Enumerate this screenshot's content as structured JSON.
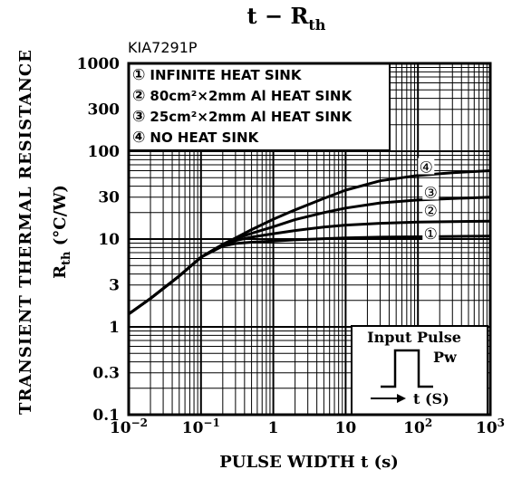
{
  "chart_data": {
    "type": "line",
    "title": {
      "main": "t − R",
      "sub": "th"
    },
    "model": "KIA7291P",
    "xlabel": "PULSE WIDTH  t (s)",
    "ylabel": {
      "outer": "TRANSIENT THERMAL RESISTANCE",
      "inner_main": "R",
      "inner_sub": "th",
      "inner_unit": " (°C/W)"
    },
    "x_scale": "log",
    "y_scale": "log",
    "xlim": [
      0.01,
      1000
    ],
    "ylim": [
      0.1,
      1000
    ],
    "grid": true,
    "x_ticks": [
      {
        "value": 0.01,
        "base": "10",
        "exp": "−2"
      },
      {
        "value": 0.1,
        "base": "10",
        "exp": "−1"
      },
      {
        "value": 1,
        "base": "1",
        "exp": ""
      },
      {
        "value": 10,
        "base": "10",
        "exp": ""
      },
      {
        "value": 100,
        "base": "10",
        "exp": "2"
      },
      {
        "value": 1000,
        "base": "10",
        "exp": "3"
      }
    ],
    "y_ticks": [
      {
        "value": 0.1,
        "label": "0.1"
      },
      {
        "value": 0.3,
        "label": "0.3"
      },
      {
        "value": 1,
        "label": "1"
      },
      {
        "value": 3,
        "label": "3"
      },
      {
        "value": 10,
        "label": "10"
      },
      {
        "value": 30,
        "label": "30"
      },
      {
        "value": 100,
        "label": "100"
      },
      {
        "value": 300,
        "label": "300"
      },
      {
        "value": 1000,
        "label": "1000"
      }
    ],
    "legend": [
      {
        "marker": "①",
        "text": "INFINITE HEAT SINK"
      },
      {
        "marker": "②",
        "text": "80cm²×2mm Al HEAT  SINK"
      },
      {
        "marker": "③",
        "text": "25cm²×2mm Al HEAT  SINK"
      },
      {
        "marker": "④",
        "text": "NO HEAT SINK"
      }
    ],
    "legend_placement": "top-left",
    "series": [
      {
        "name": "①",
        "label_at": [
          150,
          11.5
        ],
        "x": [
          0.01,
          0.02,
          0.05,
          0.1,
          0.2,
          0.3,
          0.5,
          1,
          2,
          5,
          10,
          30,
          100,
          300,
          1000
        ],
        "y": [
          1.4,
          2.1,
          3.8,
          6.2,
          8.3,
          8.9,
          9.2,
          9.5,
          9.8,
          10.1,
          10.3,
          10.5,
          10.6,
          10.7,
          10.8
        ]
      },
      {
        "name": "②",
        "label_at": [
          150,
          21
        ],
        "x": [
          0.01,
          0.02,
          0.05,
          0.1,
          0.2,
          0.3,
          0.5,
          1,
          2,
          5,
          10,
          30,
          100,
          300,
          1000
        ],
        "y": [
          1.4,
          2.1,
          3.8,
          6.2,
          8.6,
          9.6,
          10.5,
          11.5,
          12.5,
          13.7,
          14.4,
          15.1,
          15.6,
          15.8,
          16
        ]
      },
      {
        "name": "③",
        "label_at": [
          150,
          34
        ],
        "x": [
          0.01,
          0.02,
          0.05,
          0.1,
          0.2,
          0.3,
          0.5,
          1,
          2,
          5,
          10,
          30,
          100,
          300,
          1000
        ],
        "y": [
          1.4,
          2.1,
          3.8,
          6.2,
          8.7,
          10.1,
          11.6,
          13.8,
          16.6,
          20,
          22.5,
          25.8,
          27.8,
          28.9,
          30
        ]
      },
      {
        "name": "④",
        "label_at": [
          130,
          66
        ],
        "x": [
          0.01,
          0.02,
          0.05,
          0.1,
          0.2,
          0.3,
          0.5,
          1,
          2,
          5,
          10,
          30,
          100,
          300,
          1000
        ],
        "y": [
          1.4,
          2.1,
          3.8,
          6.2,
          8.7,
          10.3,
          12.8,
          16.8,
          21.5,
          29,
          36,
          46,
          53,
          57,
          60
        ]
      }
    ],
    "inset": {
      "title": "Input Pulse",
      "pw_label": "Pw",
      "axis_label": "t (S)"
    }
  }
}
